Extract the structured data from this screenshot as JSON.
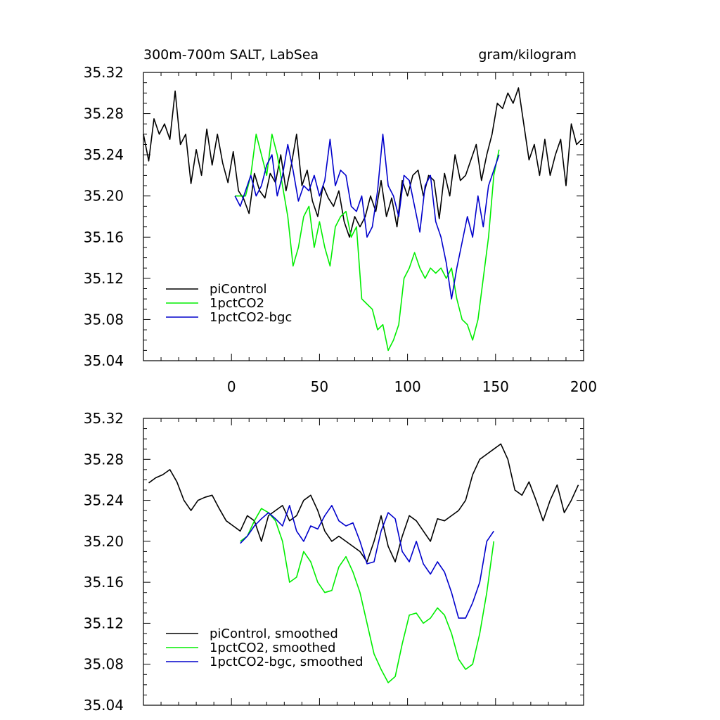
{
  "chart_data": [
    {
      "type": "line",
      "title": "300m-700m SALT, LabSea",
      "units": "gram/kilogram",
      "xlim": [
        -50,
        200
      ],
      "ylim": [
        35.04,
        35.32
      ],
      "yticks": [
        "35.04",
        "35.08",
        "35.12",
        "35.16",
        "35.20",
        "35.24",
        "35.28",
        "35.32"
      ],
      "xticks": [
        "0",
        "50",
        "100",
        "150",
        "200"
      ],
      "legend": "bottom-left",
      "series": [
        {
          "name": "piControl",
          "color": "#000000",
          "x": [
            -50,
            -47,
            -44,
            -41,
            -38,
            -35,
            -32,
            -29,
            -26,
            -23,
            -20,
            -17,
            -14,
            -11,
            -8,
            -5,
            -2,
            1,
            4,
            7,
            10,
            13,
            16,
            19,
            22,
            25,
            28,
            31,
            34,
            37,
            40,
            43,
            46,
            49,
            52,
            55,
            58,
            61,
            64,
            67,
            70,
            73,
            76,
            79,
            82,
            85,
            88,
            91,
            94,
            97,
            100,
            103,
            106,
            109,
            112,
            115,
            118,
            121,
            124,
            127,
            130,
            133,
            136,
            139,
            142,
            145,
            148,
            151,
            154,
            157,
            160,
            163,
            166,
            169,
            172,
            175,
            178,
            181,
            184,
            187,
            190,
            193,
            196,
            199
          ],
          "values": [
            35.26,
            35.234,
            35.275,
            35.26,
            35.27,
            35.255,
            35.302,
            35.25,
            35.26,
            35.212,
            35.245,
            35.22,
            35.265,
            35.23,
            35.26,
            35.232,
            35.213,
            35.243,
            35.205,
            35.197,
            35.183,
            35.222,
            35.205,
            35.198,
            35.222,
            35.213,
            35.24,
            35.205,
            35.23,
            35.26,
            35.21,
            35.225,
            35.195,
            35.18,
            35.21,
            35.198,
            35.19,
            35.205,
            35.175,
            35.16,
            35.18,
            35.17,
            35.18,
            35.2,
            35.185,
            35.215,
            35.18,
            35.198,
            35.17,
            35.215,
            35.2,
            35.22,
            35.225,
            35.2,
            35.22,
            35.215,
            35.178,
            35.222,
            35.2,
            35.24,
            35.215,
            35.22,
            35.235,
            35.25,
            35.215,
            35.24,
            35.26,
            35.29,
            35.285,
            35.3,
            35.29,
            35.305,
            35.27,
            35.235,
            35.25,
            35.22,
            35.255,
            35.22,
            35.24,
            35.255,
            35.21,
            35.27,
            35.25,
            35.255
          ]
        },
        {
          "name": "1pctCO2",
          "color": "#00ee00",
          "x": [
            2,
            5,
            8,
            11,
            14,
            17,
            20,
            23,
            26,
            29,
            32,
            35,
            38,
            41,
            44,
            47,
            50,
            53,
            56,
            59,
            62,
            65,
            68,
            71,
            74,
            77,
            80,
            83,
            86,
            89,
            92,
            95,
            98,
            101,
            104,
            107,
            110,
            113,
            116,
            119,
            122,
            125,
            128,
            131,
            134,
            137,
            140,
            143,
            146,
            149,
            152
          ],
          "values": [
            35.2,
            35.2,
            35.2,
            35.22,
            35.26,
            35.24,
            35.22,
            35.26,
            35.24,
            35.21,
            35.18,
            35.132,
            35.15,
            35.18,
            35.19,
            35.15,
            35.175,
            35.15,
            35.132,
            35.17,
            35.18,
            35.185,
            35.16,
            35.17,
            35.1,
            35.095,
            35.09,
            35.07,
            35.075,
            35.05,
            35.06,
            35.075,
            35.12,
            35.13,
            35.145,
            35.13,
            35.12,
            35.13,
            35.125,
            35.13,
            35.12,
            35.13,
            35.1,
            35.08,
            35.075,
            35.06,
            35.08,
            35.12,
            35.16,
            35.22,
            35.245
          ]
        },
        {
          "name": "1pctCO2-bgc",
          "color": "#0000cc",
          "x": [
            2,
            5,
            8,
            11,
            14,
            17,
            20,
            23,
            26,
            29,
            32,
            35,
            38,
            41,
            44,
            47,
            50,
            53,
            56,
            59,
            62,
            65,
            68,
            71,
            74,
            77,
            80,
            83,
            86,
            89,
            92,
            95,
            98,
            101,
            104,
            107,
            110,
            113,
            116,
            119,
            122,
            125,
            128,
            131,
            134,
            137,
            140,
            143,
            146,
            149,
            152
          ],
          "values": [
            35.2,
            35.19,
            35.205,
            35.22,
            35.2,
            35.21,
            35.23,
            35.24,
            35.2,
            35.22,
            35.25,
            35.225,
            35.195,
            35.21,
            35.205,
            35.22,
            35.2,
            35.215,
            35.255,
            35.21,
            35.225,
            35.22,
            35.19,
            35.185,
            35.2,
            35.16,
            35.17,
            35.205,
            35.26,
            35.21,
            35.2,
            35.18,
            35.22,
            35.215,
            35.19,
            35.165,
            35.21,
            35.22,
            35.175,
            35.16,
            35.135,
            35.1,
            35.13,
            35.155,
            35.18,
            35.16,
            35.2,
            35.17,
            35.21,
            35.225,
            35.24
          ]
        }
      ]
    },
    {
      "type": "line",
      "xlim": [
        -50,
        200
      ],
      "ylim": [
        35.04,
        35.32
      ],
      "yticks": [
        "35.04",
        "35.08",
        "35.12",
        "35.16",
        "35.20",
        "35.24",
        "35.28",
        "35.32"
      ],
      "legend": "bottom-left",
      "series": [
        {
          "name": "piControl, smoothed",
          "color": "#000000",
          "x": [
            -47,
            -43,
            -39,
            -35,
            -31,
            -27,
            -23,
            -19,
            -15,
            -11,
            -7,
            -3,
            1,
            5,
            9,
            13,
            17,
            21,
            25,
            29,
            33,
            37,
            41,
            45,
            49,
            53,
            57,
            61,
            65,
            69,
            73,
            77,
            81,
            85,
            89,
            93,
            97,
            101,
            105,
            109,
            113,
            117,
            121,
            125,
            129,
            133,
            137,
            141,
            145,
            149,
            153,
            157,
            161,
            165,
            169,
            173,
            177,
            181,
            185,
            189,
            193,
            197
          ],
          "values": [
            35.257,
            35.262,
            35.265,
            35.27,
            35.258,
            35.24,
            35.23,
            35.24,
            35.243,
            35.245,
            35.232,
            35.22,
            35.215,
            35.21,
            35.225,
            35.22,
            35.2,
            35.225,
            35.23,
            35.235,
            35.22,
            35.225,
            35.24,
            35.245,
            35.23,
            35.21,
            35.2,
            35.205,
            35.2,
            35.195,
            35.19,
            35.18,
            35.2,
            35.225,
            35.195,
            35.18,
            35.205,
            35.225,
            35.22,
            35.21,
            35.2,
            35.222,
            35.22,
            35.225,
            35.23,
            35.24,
            35.265,
            35.28,
            35.285,
            35.29,
            35.295,
            35.28,
            35.25,
            35.245,
            35.258,
            35.24,
            35.22,
            35.24,
            35.255,
            35.228,
            35.24,
            35.255
          ]
        },
        {
          "name": "1pctCO2, smoothed",
          "color": "#00ee00",
          "x": [
            5,
            9,
            13,
            17,
            21,
            25,
            29,
            33,
            37,
            41,
            45,
            49,
            53,
            57,
            61,
            65,
            69,
            73,
            77,
            81,
            85,
            89,
            93,
            97,
            101,
            105,
            109,
            113,
            117,
            121,
            125,
            129,
            133,
            137,
            141,
            145,
            149
          ],
          "values": [
            35.2,
            35.205,
            35.22,
            35.232,
            35.228,
            35.22,
            35.2,
            35.16,
            35.165,
            35.19,
            35.18,
            35.16,
            35.15,
            35.152,
            35.175,
            35.185,
            35.17,
            35.15,
            35.12,
            35.09,
            35.075,
            35.062,
            35.068,
            35.1,
            35.128,
            35.13,
            35.12,
            35.125,
            35.135,
            35.128,
            35.11,
            35.085,
            35.075,
            35.08,
            35.11,
            35.15,
            35.2
          ]
        },
        {
          "name": "1pctCO2-bgc, smoothed",
          "color": "#0000cc",
          "x": [
            5,
            9,
            13,
            17,
            21,
            25,
            29,
            33,
            37,
            41,
            45,
            49,
            53,
            57,
            61,
            65,
            69,
            73,
            77,
            81,
            85,
            89,
            93,
            97,
            101,
            105,
            109,
            113,
            117,
            121,
            125,
            129,
            133,
            137,
            141,
            145,
            149
          ],
          "values": [
            35.198,
            35.205,
            35.215,
            35.222,
            35.228,
            35.222,
            35.215,
            35.235,
            35.21,
            35.2,
            35.215,
            35.212,
            35.225,
            35.235,
            35.22,
            35.215,
            35.218,
            35.2,
            35.178,
            35.18,
            35.21,
            35.228,
            35.222,
            35.19,
            35.18,
            35.2,
            35.178,
            35.168,
            35.18,
            35.17,
            35.15,
            35.125,
            35.125,
            35.14,
            35.16,
            35.2,
            35.21
          ]
        }
      ]
    }
  ]
}
